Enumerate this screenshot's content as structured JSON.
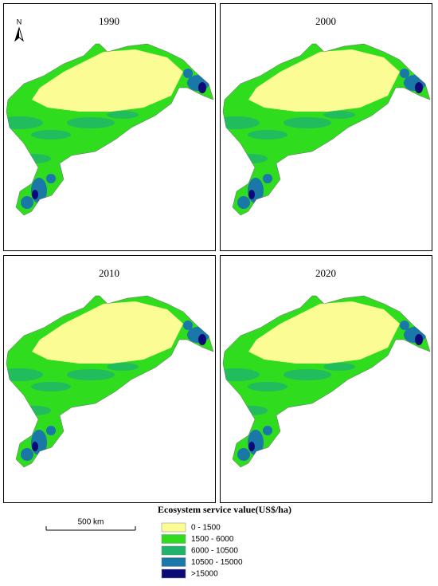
{
  "panels": [
    {
      "year": "1990"
    },
    {
      "year": "2000"
    },
    {
      "year": "2010"
    },
    {
      "year": "2020"
    }
  ],
  "north": "N",
  "scale_bar": "500 km",
  "legend": {
    "title": "Ecosystem service value(US$/ha)",
    "items": [
      {
        "label": "0 - 1500",
        "color": "#fcfc95"
      },
      {
        "label": "1500 - 6000",
        "color": "#2fdc1e"
      },
      {
        "label": "6000 - 10500",
        "color": "#1fb46e"
      },
      {
        "label": "10500 - 15000",
        "color": "#1a78a8"
      },
      {
        "label": ">15000",
        "color": "#0b0b78"
      }
    ]
  }
}
